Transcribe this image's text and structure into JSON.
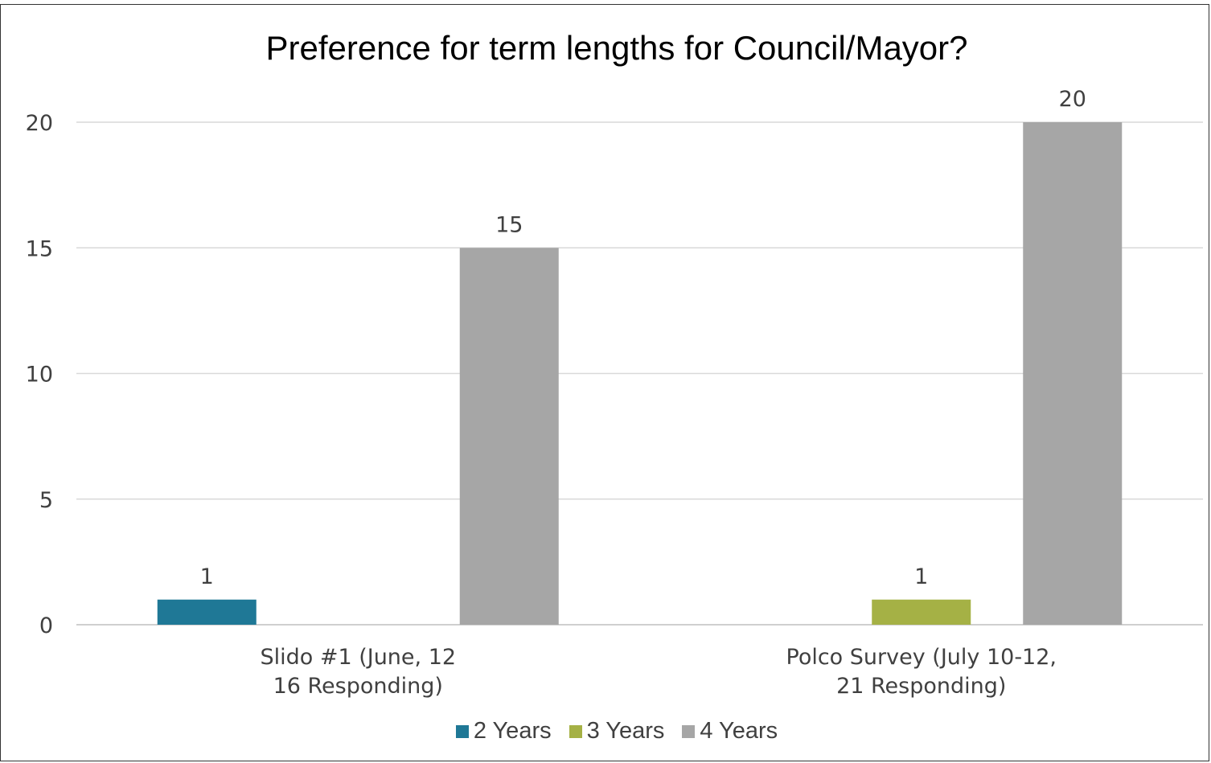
{
  "chart_data": {
    "type": "bar",
    "title": "Preference for term lengths for Council/Mayor?",
    "xlabel": "",
    "ylabel": "",
    "ylim": [
      0,
      20
    ],
    "yticks": [
      0,
      5,
      10,
      15,
      20
    ],
    "grid": true,
    "legend_position": "bottom",
    "categories": [
      [
        "Slido #1 (June, 12",
        "16 Responding)"
      ],
      [
        "Polco Survey (July 10-12,",
        "21 Responding)"
      ]
    ],
    "series": [
      {
        "name": "2 Years",
        "color": "#1f7896",
        "values": [
          1,
          null
        ]
      },
      {
        "name": "3 Years",
        "color": "#a5b145",
        "values": [
          null,
          1
        ]
      },
      {
        "name": "4 Years",
        "color": "#a6a6a6",
        "values": [
          15,
          20
        ]
      }
    ]
  }
}
